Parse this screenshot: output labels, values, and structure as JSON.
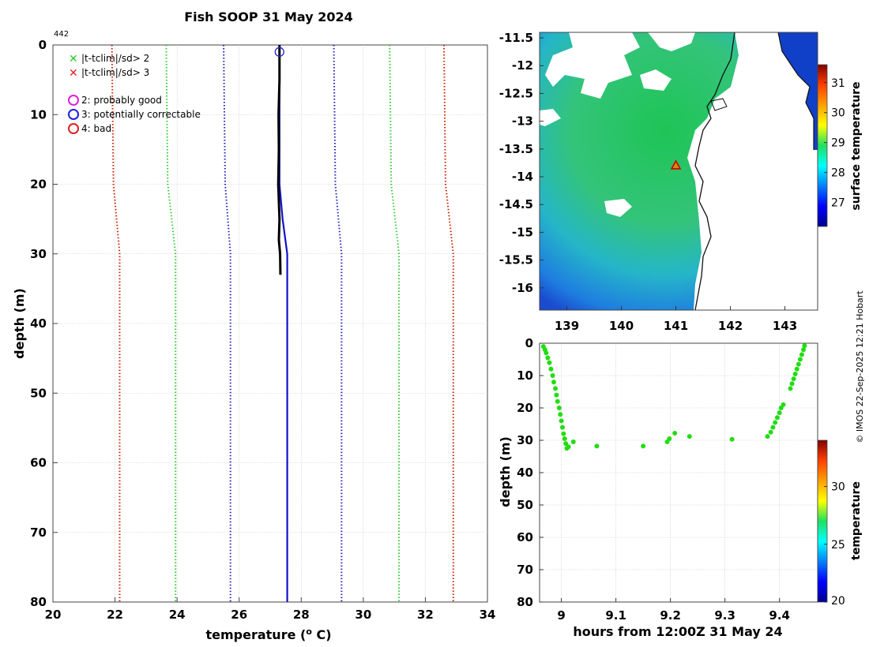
{
  "chart_data": [
    {
      "type": "line",
      "id": "profile",
      "title": "Fish SOOP 31 May 2024",
      "profile_id": "442",
      "xlabel": "temperature (",
      "xlabel_sup": "o",
      "xlabel_tail": " C)",
      "ylabel": "depth (m)",
      "xlim": [
        20,
        34
      ],
      "ylim": [
        0,
        80
      ],
      "xticks": [
        20,
        22,
        24,
        26,
        28,
        30,
        32,
        34
      ],
      "yticks": [
        0,
        10,
        20,
        30,
        40,
        50,
        60,
        70,
        80
      ],
      "legend": [
        {
          "marker": "x",
          "color": "#22cc22",
          "label": "|t-tclim|/sd> 2"
        },
        {
          "marker": "x",
          "color": "#dd2222",
          "label": "|t-tclim|/sd> 3"
        },
        {
          "marker": "o",
          "color": "#dd22dd",
          "label": "2: probably good"
        },
        {
          "marker": "o",
          "color": "#2222dd",
          "label": "3: potentially correctable"
        },
        {
          "marker": "o",
          "color": "#dd2222",
          "label": "4: bad"
        }
      ],
      "series": [
        {
          "name": "clim -3sd",
          "color": "#cc2200",
          "style": "dotted",
          "depth": [
            0,
            20,
            30,
            80
          ],
          "temp": [
            21.9,
            21.95,
            22.15,
            22.15
          ]
        },
        {
          "name": "clim -2sd",
          "color": "#33cc33",
          "style": "dotted",
          "depth": [
            0,
            20,
            30,
            80
          ],
          "temp": [
            23.65,
            23.7,
            23.95,
            23.95
          ]
        },
        {
          "name": "clim -1sd",
          "color": "#2222bb",
          "style": "dotted",
          "depth": [
            0,
            20,
            30,
            80
          ],
          "temp": [
            25.5,
            25.55,
            25.72,
            25.72
          ]
        },
        {
          "name": "clim +1sd",
          "color": "#2222bb",
          "style": "dotted",
          "depth": [
            0,
            20,
            30,
            80
          ],
          "temp": [
            29.05,
            29.1,
            29.3,
            29.3
          ]
        },
        {
          "name": "clim +2sd",
          "color": "#33cc33",
          "style": "dotted",
          "depth": [
            0,
            20,
            30,
            80
          ],
          "temp": [
            30.85,
            30.9,
            31.15,
            31.15
          ]
        },
        {
          "name": "clim +3sd",
          "color": "#cc2200",
          "style": "dotted",
          "depth": [
            0,
            20,
            30,
            80
          ],
          "temp": [
            32.6,
            32.65,
            32.9,
            32.9
          ]
        },
        {
          "name": "mean profile",
          "color": "#1111cc",
          "style": "solid",
          "depth": [
            0,
            20,
            25,
            30,
            80
          ],
          "temp": [
            27.3,
            27.3,
            27.4,
            27.55,
            27.55
          ]
        },
        {
          "name": "observed temperature",
          "color": "#000000",
          "style": "solid",
          "depth": [
            0,
            5,
            10,
            15,
            20,
            25,
            28,
            30,
            33
          ],
          "temp": [
            27.3,
            27.3,
            27.27,
            27.28,
            27.26,
            27.3,
            27.28,
            27.32,
            27.33
          ]
        }
      ],
      "flag_marker": {
        "depth": 1,
        "temp": 27.3,
        "color": "#2222dd"
      }
    },
    {
      "type": "heatmap",
      "id": "sst-map",
      "colorbar_label": "surface temperature",
      "xlim": [
        138.5,
        143.6
      ],
      "ylim": [
        -16.4,
        -11.4
      ],
      "xticks": [
        139,
        140,
        141,
        142,
        143
      ],
      "yticks": [
        -11.5,
        -12,
        -12.5,
        -13,
        -13.5,
        -14,
        -14.5,
        -15,
        -15.5,
        -16
      ],
      "colorbar_range": [
        26.2,
        31.6
      ],
      "colorbar_ticks": [
        27,
        28,
        29,
        30,
        31
      ],
      "position_marker": {
        "lon": 141.0,
        "lat": -13.8,
        "color": "#cc2200"
      }
    },
    {
      "type": "scatter",
      "id": "time-depth",
      "xlabel": "hours from 12:00Z 31 May 24",
      "ylabel": "depth (m)",
      "colorbar_label": "temperature",
      "xlim": [
        8.96,
        9.47
      ],
      "ylim": [
        0,
        80
      ],
      "xticks": [
        9,
        9.1,
        9.2,
        9.3,
        9.4
      ],
      "yticks": [
        0,
        10,
        20,
        30,
        40,
        50,
        60,
        70,
        80
      ],
      "colorbar_range": [
        20,
        34
      ],
      "colorbar_ticks": [
        20,
        25,
        30
      ],
      "points": [
        {
          "x": 8.967,
          "y": 1
        },
        {
          "x": 8.97,
          "y": 2
        },
        {
          "x": 8.972,
          "y": 3
        },
        {
          "x": 8.975,
          "y": 4.5
        },
        {
          "x": 8.978,
          "y": 6
        },
        {
          "x": 8.981,
          "y": 8
        },
        {
          "x": 8.984,
          "y": 10
        },
        {
          "x": 8.986,
          "y": 12
        },
        {
          "x": 8.989,
          "y": 14
        },
        {
          "x": 8.991,
          "y": 16
        },
        {
          "x": 8.993,
          "y": 18
        },
        {
          "x": 8.996,
          "y": 20
        },
        {
          "x": 8.998,
          "y": 22
        },
        {
          "x": 9.0,
          "y": 24
        },
        {
          "x": 9.002,
          "y": 26
        },
        {
          "x": 9.004,
          "y": 28
        },
        {
          "x": 9.006,
          "y": 29.5
        },
        {
          "x": 9.008,
          "y": 31
        },
        {
          "x": 9.01,
          "y": 32.5
        },
        {
          "x": 9.013,
          "y": 32
        },
        {
          "x": 9.022,
          "y": 30.5
        },
        {
          "x": 9.065,
          "y": 31.8
        },
        {
          "x": 9.15,
          "y": 31.8
        },
        {
          "x": 9.194,
          "y": 30.5
        },
        {
          "x": 9.198,
          "y": 29.5
        },
        {
          "x": 9.208,
          "y": 27.8
        },
        {
          "x": 9.235,
          "y": 28.8
        },
        {
          "x": 9.313,
          "y": 29.7
        },
        {
          "x": 9.378,
          "y": 28.8
        },
        {
          "x": 9.384,
          "y": 27.5
        },
        {
          "x": 9.388,
          "y": 26
        },
        {
          "x": 9.392,
          "y": 24.5
        },
        {
          "x": 9.396,
          "y": 23
        },
        {
          "x": 9.4,
          "y": 21.5
        },
        {
          "x": 9.403,
          "y": 20
        },
        {
          "x": 9.407,
          "y": 19
        },
        {
          "x": 9.42,
          "y": 14
        },
        {
          "x": 9.423,
          "y": 12.5
        },
        {
          "x": 9.426,
          "y": 11
        },
        {
          "x": 9.429,
          "y": 9.5
        },
        {
          "x": 9.432,
          "y": 8
        },
        {
          "x": 9.435,
          "y": 6.5
        },
        {
          "x": 9.438,
          "y": 5
        },
        {
          "x": 9.441,
          "y": 3.5
        },
        {
          "x": 9.444,
          "y": 2
        },
        {
          "x": 9.446,
          "y": 0.8
        }
      ],
      "point_color": "#22dd11"
    }
  ],
  "credit": "© IMOS 22-Sep-2025 12:21 Hobart"
}
